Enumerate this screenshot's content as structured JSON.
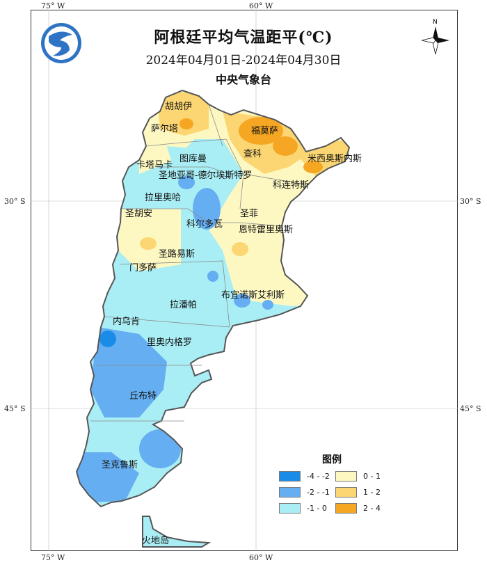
{
  "title": "阿根廷平均气温距平(℃)",
  "date_range": "2024年04月01日-2024年04月30日",
  "agency": "中央气象台",
  "north_label": "N",
  "grid_labels": {
    "lon_top_75": "75° W",
    "lon_top_60": "60° W",
    "lon_bottom_75": "75° W",
    "lon_bottom_60": "60° W",
    "lat_left_30": "30° S",
    "lat_left_45": "45° S",
    "lat_right_30": "30° S",
    "lat_right_45": "45° S"
  },
  "legend": {
    "title": "图例",
    "items": [
      {
        "range": "-4 - -2",
        "color": "#1a8ce8"
      },
      {
        "range": "-2 - -1",
        "color": "#66aef2"
      },
      {
        "range": "-1 - 0",
        "color": "#aaeef5"
      },
      {
        "range": "0 - 1",
        "color": "#fdf8c2"
      },
      {
        "range": "1 - 2",
        "color": "#fbd672"
      },
      {
        "range": "2 - 4",
        "color": "#f5a623"
      }
    ]
  },
  "regions": [
    {
      "name": "胡胡伊"
    },
    {
      "name": "萨尔塔"
    },
    {
      "name": "福莫萨"
    },
    {
      "name": "查科"
    },
    {
      "name": "米西奥斯内斯"
    },
    {
      "name": "卡塔马卡"
    },
    {
      "name": "图库曼"
    },
    {
      "name": "圣地亚哥-德尔埃斯特罗"
    },
    {
      "name": "科连特斯"
    },
    {
      "name": "拉里奥哈"
    },
    {
      "name": "圣胡安"
    },
    {
      "name": "圣菲"
    },
    {
      "name": "科尔多瓦"
    },
    {
      "name": "恩特雷里奥斯"
    },
    {
      "name": "圣路易斯"
    },
    {
      "name": "门多萨"
    },
    {
      "name": "布宜诺斯艾利斯"
    },
    {
      "name": "拉潘帕"
    },
    {
      "name": "内乌肯"
    },
    {
      "name": "里奥内格罗"
    },
    {
      "name": "丘布特"
    },
    {
      "name": "圣克鲁斯"
    },
    {
      "name": "火地岛"
    }
  ]
}
